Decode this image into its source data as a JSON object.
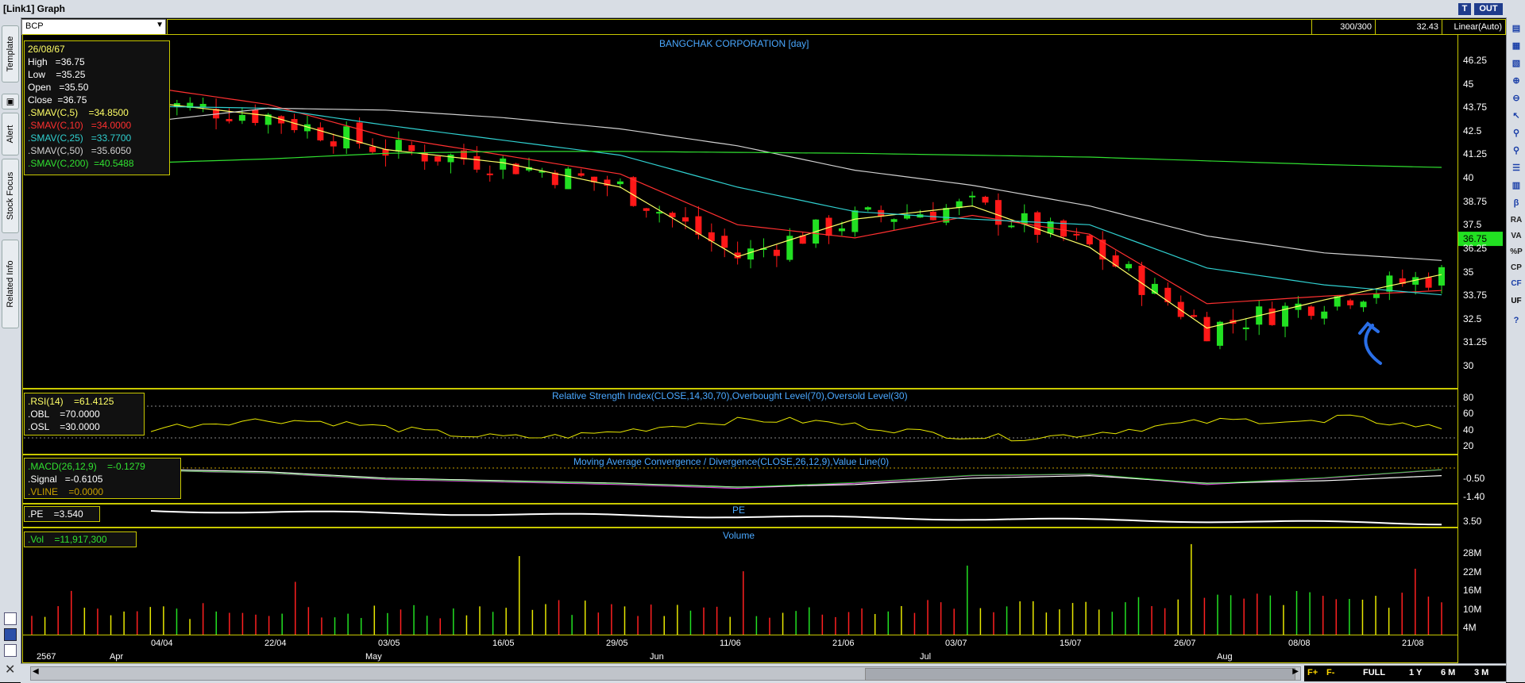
{
  "window": {
    "title": "[Link1] Graph",
    "btn_t": "T",
    "btn_out": "OUT"
  },
  "left_tabs": [
    "Template",
    "Alert",
    "Stock Focus",
    "Related Info"
  ],
  "toolbar": {
    "symbol": "BCP",
    "count": "300/300",
    "last_value": "32.43",
    "scale_mode": "Linear(Auto)"
  },
  "price_panel": {
    "title": "BANGCHAK CORPORATION [day]",
    "info": [
      {
        "text": "26/08/67",
        "color": "#ffff66"
      },
      {
        "text": "High   =36.75",
        "color": "#ffffff"
      },
      {
        "text": "Low    =35.25",
        "color": "#ffffff"
      },
      {
        "text": "Open   =35.50",
        "color": "#ffffff"
      },
      {
        "text": "Close  =36.75",
        "color": "#ffffff"
      },
      {
        "text": ".SMAV(C,5)    =34.8500",
        "color": "#ffff66"
      },
      {
        "text": ".SMAV(C,10)   =34.0000",
        "color": "#ff3030"
      },
      {
        "text": ".SMAV(C,25)   =33.7700",
        "color": "#30d0d0"
      },
      {
        "text": ".SMAV(C,50)   =35.6050",
        "color": "#d0d0d0"
      },
      {
        "text": ".SMAV(C,200)  =40.5488",
        "color": "#30e030"
      }
    ],
    "y_ticks": [
      "46.25",
      "45",
      "43.75",
      "42.5",
      "41.25",
      "40",
      "38.75",
      "37.5",
      "36.25",
      "35",
      "33.75",
      "32.5",
      "31.25",
      "30"
    ],
    "last_price": "36.75"
  },
  "rsi_panel": {
    "title": "Relative Strength Index(CLOSE,14,30,70),Overbought Level(70),Oversold Level(30)",
    "info": [
      {
        "text": ".RSI(14)    =61.4125",
        "color": "#ffff66"
      },
      {
        "text": ".OBL    =70.0000",
        "color": "#ffffff"
      },
      {
        "text": ".OSL    =30.0000",
        "color": "#ffffff"
      }
    ],
    "y_ticks": [
      "80",
      "60",
      "40",
      "20"
    ]
  },
  "macd_panel": {
    "title": "Moving Average Convergence / Divergence(CLOSE,26,12,9),Value Line(0)",
    "info": [
      {
        "text": ".MACD(26,12,9)    =-0.1279",
        "color": "#30e030"
      },
      {
        "text": ".Signal   =-0.6105",
        "color": "#ffffff"
      },
      {
        "text": ".VLINE    =0.0000",
        "color": "#c8a000"
      }
    ],
    "y_ticks": [
      "-0.50",
      "-1.40"
    ]
  },
  "pe_panel": {
    "title": "PE",
    "info": [
      {
        "text": ".PE    =3.540",
        "color": "#ffffff"
      }
    ],
    "y_ticks": [
      "3.50"
    ]
  },
  "volume_panel": {
    "title": "Volume",
    "info": [
      {
        "text": ".Vol    =11,917,300",
        "color": "#30e030"
      }
    ],
    "y_ticks": [
      "28M",
      "22M",
      "16M",
      "10M",
      "4M"
    ]
  },
  "x_axis": {
    "dates": [
      "04/04",
      "22/04",
      "03/05",
      "16/05",
      "29/05",
      "11/06",
      "21/06",
      "03/07",
      "15/07",
      "26/07",
      "08/08",
      "21/08"
    ],
    "months": [
      "2567",
      "Apr",
      "May",
      "Jun",
      "Jul",
      "Aug"
    ]
  },
  "range_buttons": [
    "FULL",
    "1 Y",
    "6 M",
    "3 M"
  ],
  "right_icons": [
    "R",
    "V",
    "A",
    "%P",
    "CP",
    "CF",
    "UF",
    "β",
    "?"
  ],
  "chart_data": {
    "type": "candlestick",
    "title": "BANGCHAK CORPORATION [day]",
    "ylim": [
      30,
      46.25
    ],
    "x": [
      "04/04",
      "22/04",
      "03/05",
      "16/05",
      "29/05",
      "11/06",
      "21/06",
      "03/07",
      "15/07",
      "26/07",
      "08/08",
      "21/08"
    ],
    "series": [
      {
        "name": "SMAV(C,5)",
        "color": "#ffff66",
        "values": [
          44.0,
          43.3,
          41.5,
          40.8,
          39.5,
          35.8,
          37.8,
          38.5,
          36.3,
          32.0,
          33.5,
          34.85
        ]
      },
      {
        "name": "SMAV(C,10)",
        "color": "#ff3030",
        "values": [
          44.8,
          43.9,
          42.2,
          41.2,
          40.2,
          37.5,
          36.8,
          38.0,
          37.0,
          33.3,
          33.7,
          34.0
        ]
      },
      {
        "name": "SMAV(C,25)",
        "color": "#30d0d0",
        "values": [
          43.8,
          43.7,
          42.8,
          42.0,
          41.2,
          39.5,
          38.2,
          37.8,
          37.5,
          35.2,
          34.3,
          33.77
        ]
      },
      {
        "name": "SMAV(C,50)",
        "color": "#d0d0d0",
        "values": [
          43.0,
          43.7,
          43.6,
          43.2,
          42.6,
          41.7,
          40.4,
          39.6,
          38.5,
          36.9,
          36.0,
          35.6
        ]
      },
      {
        "name": "SMAV(C,200)",
        "color": "#30e030",
        "values": [
          40.8,
          41.0,
          41.3,
          41.4,
          41.4,
          41.35,
          41.3,
          41.2,
          41.1,
          40.9,
          40.7,
          40.55
        ]
      }
    ],
    "volume": [
      6,
      7,
      8,
      7,
      9,
      8,
      7,
      9,
      10,
      12,
      14,
      11.9
    ],
    "volume_unit": "M"
  }
}
